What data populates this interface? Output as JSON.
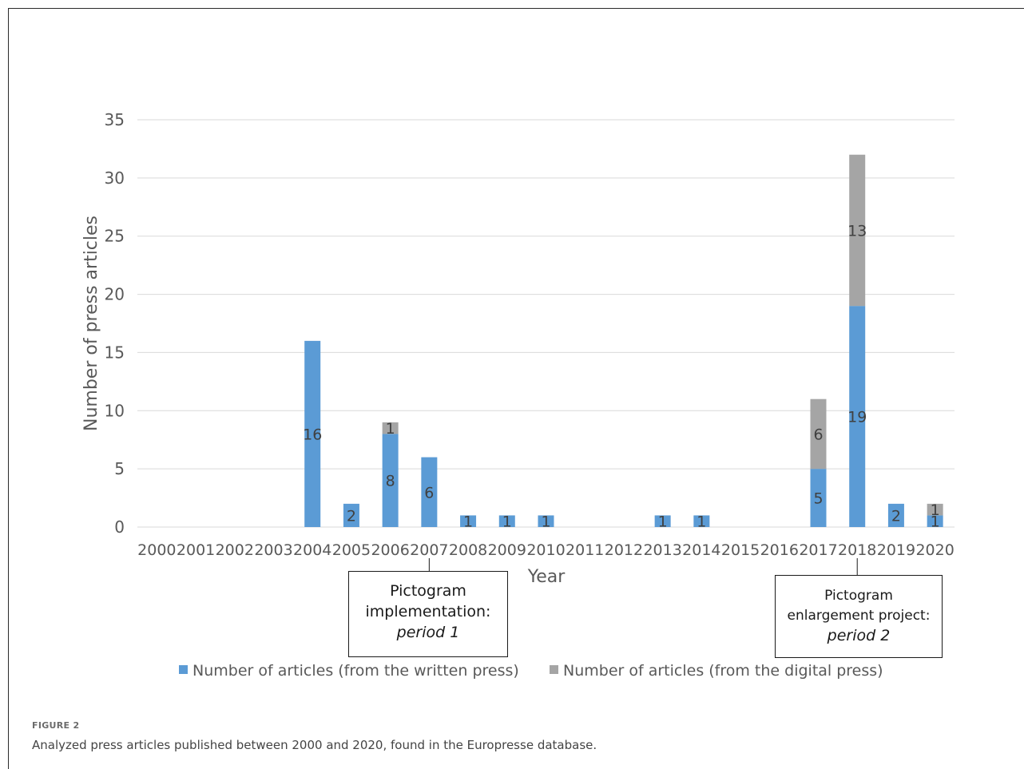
{
  "chart_data": {
    "type": "bar",
    "stacked": true,
    "categories": [
      "2000",
      "2001",
      "2002",
      "2003",
      "2004",
      "2005",
      "2006",
      "2007",
      "2008",
      "2009",
      "2010",
      "2011",
      "2012",
      "2013",
      "2014",
      "2015",
      "2016",
      "2017",
      "2018",
      "2019",
      "2020"
    ],
    "series": [
      {
        "name": "Number of articles (from the written press)",
        "color": "#5b9bd5",
        "values": [
          0,
          0,
          0,
          0,
          16,
          2,
          8,
          6,
          1,
          1,
          1,
          0,
          0,
          1,
          1,
          0,
          0,
          5,
          19,
          2,
          1
        ]
      },
      {
        "name": "Number of articles (from the digital press)",
        "color": "#a5a5a5",
        "values": [
          0,
          0,
          0,
          0,
          0,
          0,
          1,
          0,
          0,
          0,
          0,
          0,
          0,
          0,
          0,
          0,
          0,
          6,
          13,
          0,
          1
        ]
      }
    ],
    "xlabel": "Year",
    "ylabel": "Number of press articles",
    "ylim": [
      0,
      35
    ],
    "yticks": [
      0,
      5,
      10,
      15,
      20,
      25,
      30,
      35
    ],
    "grid": true,
    "legend_position": "bottom",
    "annotations": [
      {
        "category": "2007",
        "line1": "Pictogram",
        "line2": "implementation:",
        "line3": "period 1"
      },
      {
        "category": "2018",
        "line1": "Pictogram",
        "line2": "enlargement project:",
        "line3": "period 2"
      }
    ]
  },
  "caption": {
    "figure_label": "FIGURE 2",
    "text": "Analyzed press articles published between 2000 and 2020, found in the Europresse database."
  }
}
